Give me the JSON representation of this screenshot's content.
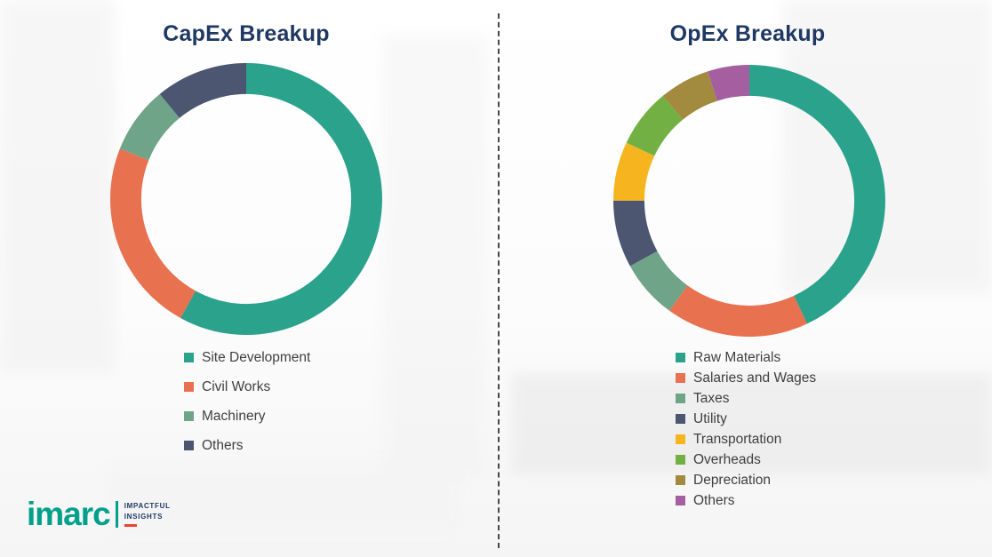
{
  "chart_data": [
    {
      "type": "pie",
      "subtype": "donut",
      "title": "CapEx Breakup",
      "labels": [
        "Site Development",
        "Civil Works",
        "Machinery",
        "Others"
      ],
      "values": [
        58,
        23,
        8,
        11
      ],
      "colors": [
        "#2AA28C",
        "#E8714F",
        "#6FA488",
        "#4D5670"
      ],
      "legend_position": "below-chart-left",
      "start_angle_deg": -90,
      "direction": "clockwise"
    },
    {
      "type": "pie",
      "subtype": "donut",
      "title": "OpEx Breakup",
      "labels": [
        "Raw Materials",
        "Salaries and Wages",
        "Taxes",
        "Utility",
        "Transportation",
        "Overheads",
        "Depreciation",
        "Others"
      ],
      "values": [
        43,
        17,
        7,
        8,
        7,
        7,
        6,
        5
      ],
      "colors": [
        "#2AA28C",
        "#E8714F",
        "#6FA488",
        "#4D5670",
        "#F6B51F",
        "#72B043",
        "#A28A3E",
        "#A55FA0"
      ],
      "legend_position": "below-chart-left",
      "start_angle_deg": -90,
      "direction": "clockwise"
    }
  ],
  "logo": {
    "brand": "imarc",
    "tagline": [
      "IMPACTFUL",
      "INSIGHTS"
    ],
    "brand_color": "#00A08B",
    "tagline_color": "#1F3864",
    "accent_color": "#E8452C"
  }
}
